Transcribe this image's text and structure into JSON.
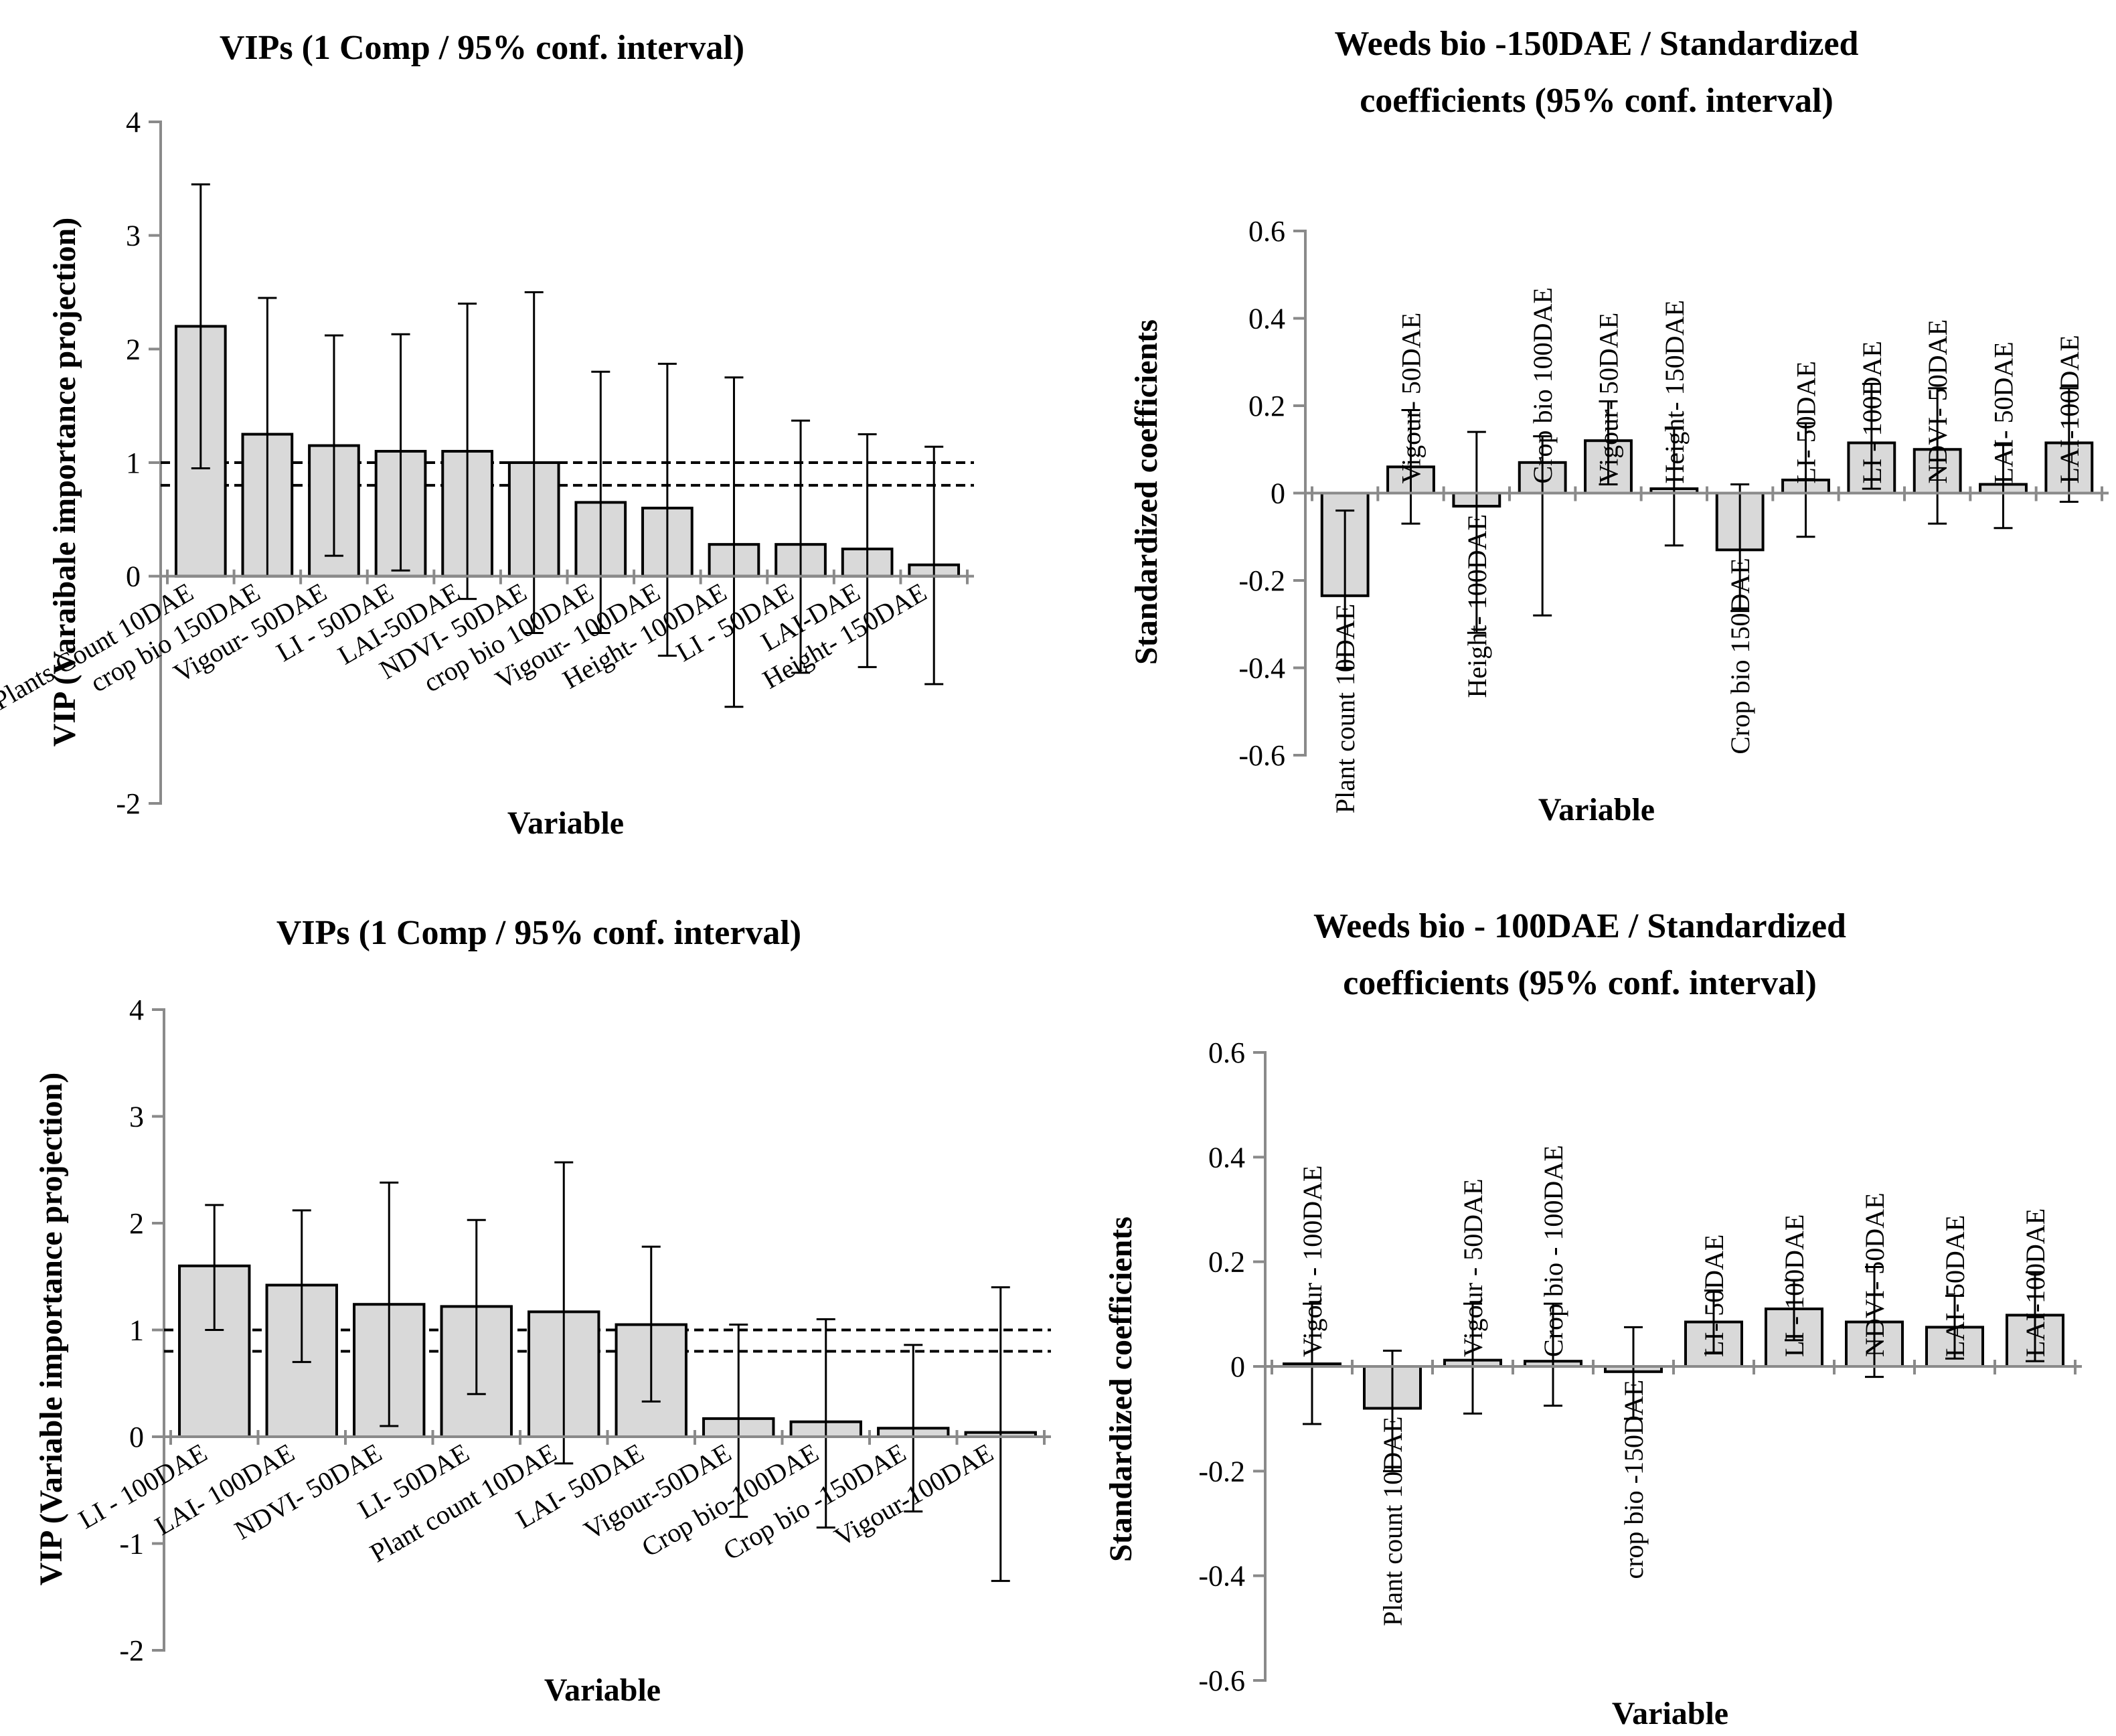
{
  "chart_data": [
    {
      "type": "bar",
      "title": "VIPs (1 Comp / 95% conf. interval)",
      "xlabel": "Variable",
      "ylabel": "VIP (Varaibale importance projection)",
      "ylim": [
        -2,
        4
      ],
      "yticks": [
        -2,
        0,
        1,
        2,
        3,
        4
      ],
      "ytick_labels": [
        "-2",
        "0",
        "1",
        "2",
        "3",
        "4"
      ],
      "threshold_lines": [
        1.0,
        0.8
      ],
      "categories": [
        "Plants Count 10DAE",
        "crop bio 150DAE",
        "Vigour- 50DAE",
        "LI - 50DAE",
        "LAI-50DAE",
        "NDVI- 50DAE",
        "crop bio 100DAE",
        "Vigour- 100DAE",
        "Height- 100DAE",
        "LI - 50DAE",
        "LAI-DAE",
        "Height- 150DAE"
      ],
      "values": [
        2.2,
        1.25,
        1.15,
        1.1,
        1.1,
        1.0,
        0.65,
        0.6,
        0.28,
        0.28,
        0.24,
        0.1
      ],
      "err_low": [
        0.95,
        0.0,
        0.18,
        0.05,
        -0.2,
        -0.5,
        -0.5,
        -0.7,
        -1.15,
        -0.85,
        -0.8,
        -0.95
      ],
      "err_high": [
        3.45,
        2.45,
        2.12,
        2.13,
        2.4,
        2.5,
        1.8,
        1.87,
        1.75,
        1.37,
        1.25,
        1.14
      ]
    },
    {
      "type": "bar",
      "title": "Weeds bio -150DAE / Standardized coefficients (95% conf. interval)",
      "title_lines": [
        "Weeds bio -150DAE / Standardized",
        "coefficients (95% conf. interval)"
      ],
      "xlabel": "Variable",
      "ylabel": "Standardized coefficients",
      "ylim": [
        -0.6,
        0.6
      ],
      "yticks": [
        -0.6,
        -0.4,
        -0.2,
        0,
        0.2,
        0.4,
        0.6
      ],
      "ytick_labels": [
        "-0.6",
        "-0.4",
        "-0.2",
        "0",
        "0.2",
        "0.4",
        "0.6"
      ],
      "categories": [
        "Plant count 10DAE",
        "Vigour- 50DAE",
        "Height- 100DAE",
        "Crop bio 100DAE",
        "Vigour- 50DAE",
        "Height- 150DAE",
        "Crop bio 150DAE",
        "LI- 50DAE",
        "LI - 100DAE",
        "NDVI- 50DAE",
        "LAI- 50DAE",
        "LAI-100DAE"
      ],
      "values": [
        -0.235,
        0.06,
        -0.03,
        0.07,
        0.12,
        0.01,
        -0.13,
        0.03,
        0.115,
        0.1,
        0.02,
        0.115
      ],
      "err_low": [
        -0.04,
        -0.07,
        -0.32,
        -0.28,
        0.02,
        -0.12,
        -0.27,
        -0.1,
        0.01,
        -0.07,
        -0.08,
        -0.02
      ],
      "err_high": [
        -0.4,
        0.19,
        0.14,
        0.13,
        0.21,
        0.15,
        0.02,
        0.16,
        0.25,
        0.24,
        0.11,
        0.24
      ]
    },
    {
      "type": "bar",
      "title": "VIPs (1 Comp / 95% conf. interval)",
      "xlabel": "Variable",
      "ylabel": "VIP (Variable importance projection)",
      "ylim": [
        -2,
        4
      ],
      "yticks": [
        -2,
        -1,
        0,
        1,
        2,
        3,
        4
      ],
      "ytick_labels": [
        "-2",
        "-1",
        "0",
        "1",
        "2",
        "3",
        "4"
      ],
      "threshold_lines": [
        1.0,
        0.8
      ],
      "categories": [
        "LI - 100DAE",
        "LAI- 100DAE",
        "NDVI- 50DAE",
        "LI- 50DAE",
        "Plant count 10DAE",
        "LAI- 50DAE",
        "Vigour-50DAE",
        "Crop bio-100DAE",
        "Crop bio -150DAE",
        "Vigour-100DAE"
      ],
      "values": [
        1.6,
        1.42,
        1.24,
        1.22,
        1.17,
        1.05,
        0.17,
        0.14,
        0.08,
        0.04
      ],
      "err_low": [
        1.0,
        0.7,
        0.1,
        0.4,
        -0.25,
        0.33,
        -0.75,
        -0.85,
        -0.7,
        -1.35
      ],
      "err_high": [
        2.17,
        2.12,
        2.38,
        2.03,
        2.57,
        1.78,
        1.05,
        1.1,
        0.86,
        1.4
      ]
    },
    {
      "type": "bar",
      "title": "Weeds bio - 100DAE / Standardized coefficients (95% conf. interval)",
      "title_lines": [
        "Weeds bio - 100DAE / Standardized",
        "coefficients (95% conf. interval)"
      ],
      "xlabel": "Variable",
      "ylabel": "Standardized coefficients",
      "ylim": [
        -0.6,
        0.6
      ],
      "yticks": [
        -0.6,
        -0.4,
        -0.2,
        0,
        0.2,
        0.4,
        0.6
      ],
      "ytick_labels": [
        "-0.6",
        "-0.4",
        "-0.2",
        "0",
        "0.2",
        "0.4",
        "0.6"
      ],
      "categories": [
        "Vigour - 100DAE",
        "Plant count 10DAE",
        "Vigour - 50DAE",
        "Crop bio - 100DAE",
        "crop bio -150DAE",
        "LI- 50DAE",
        "LI - 100DAE",
        "NDVI- 50DAE",
        "LAI- 50DAE",
        "LAI-100DAE"
      ],
      "values": [
        0.005,
        -0.08,
        0.012,
        0.01,
        -0.01,
        0.085,
        0.11,
        0.085,
        0.075,
        0.098
      ],
      "err_low": [
        -0.11,
        -0.2,
        -0.09,
        -0.075,
        -0.1,
        0.025,
        0.05,
        -0.02,
        0.015,
        0.01
      ],
      "err_high": [
        0.12,
        0.03,
        0.12,
        0.12,
        0.075,
        0.145,
        0.165,
        0.19,
        0.135,
        0.18
      ]
    }
  ]
}
